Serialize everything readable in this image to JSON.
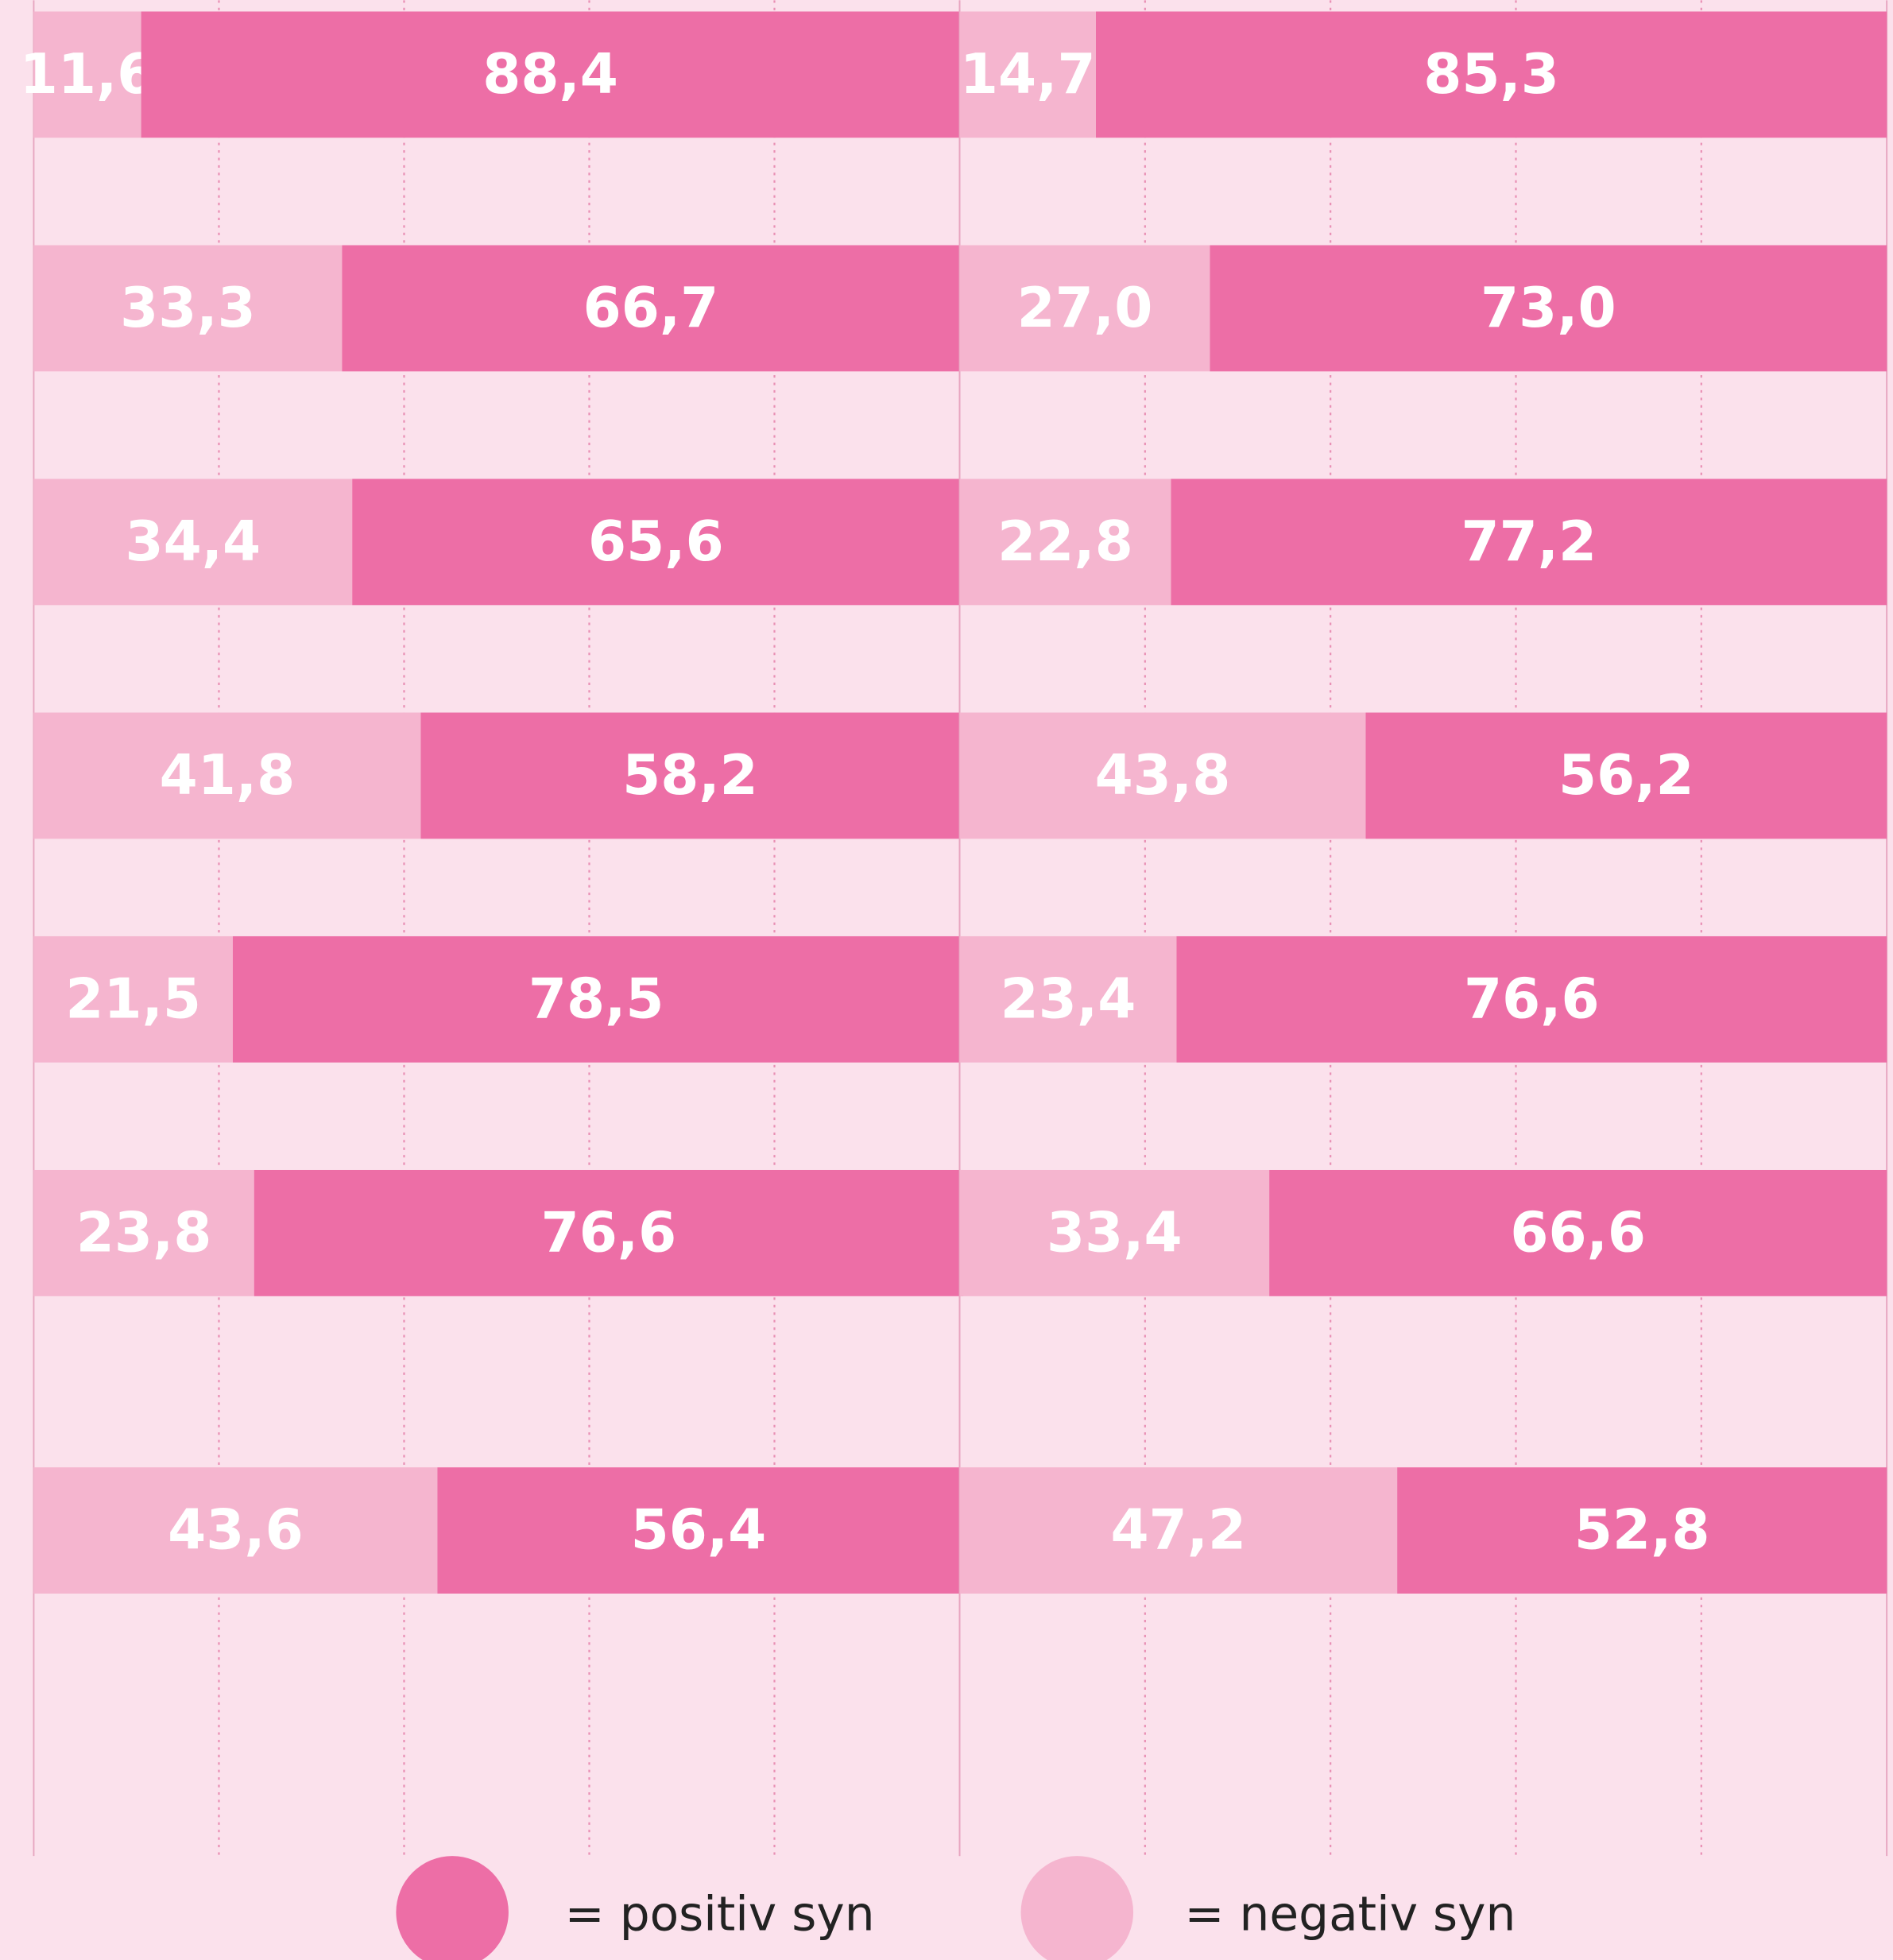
{
  "chart_data": [
    {
      "type": "bar",
      "orientation": "horizontal",
      "stacked": true,
      "categories": [
        null,
        null,
        null,
        null,
        null,
        null,
        null
      ],
      "xlim": [
        0,
        100
      ],
      "xticks": [
        0,
        20,
        40,
        60,
        80,
        100
      ],
      "grid": true,
      "series": [
        {
          "name": "= negativ syn",
          "color": "#f5b5cf",
          "values": [
            11.6,
            33.3,
            34.4,
            41.8,
            21.5,
            23.8,
            43.6
          ],
          "value_labels": [
            "11,6",
            "33,3",
            "34,4",
            "41,8",
            "21,5",
            "23,8",
            "43,6"
          ]
        },
        {
          "name": "= positiv syn",
          "color": "#ed6ea6",
          "values": [
            88.4,
            66.7,
            65.6,
            58.2,
            78.5,
            76.6,
            56.4
          ],
          "value_labels": [
            "88,4",
            "66,7",
            "65,6",
            "58,2",
            "78,5",
            "76,6",
            "56,4"
          ]
        }
      ]
    },
    {
      "type": "bar",
      "orientation": "horizontal",
      "stacked": true,
      "categories": [
        null,
        null,
        null,
        null,
        null,
        null,
        null
      ],
      "xlim": [
        0,
        100
      ],
      "xticks": [
        0,
        20,
        40,
        60,
        80,
        100
      ],
      "grid": true,
      "series": [
        {
          "color": "#f5b5cf",
          "values": [
            14.7,
            27.0,
            22.8,
            43.8,
            23.4,
            33.4,
            47.2
          ],
          "value_labels": [
            "14,7",
            "27,0",
            "22,8",
            "43,8",
            "23,4",
            "33,4",
            "47,2"
          ]
        },
        {
          "color": "#ed6ea6",
          "values": [
            85.3,
            73.0,
            77.2,
            56.2,
            76.6,
            66.6,
            52.8
          ],
          "value_labels": [
            "85,3",
            "73,0",
            "77,2",
            "56,2",
            "76,6",
            "66,6",
            "52,8"
          ]
        }
      ]
    }
  ]
}
